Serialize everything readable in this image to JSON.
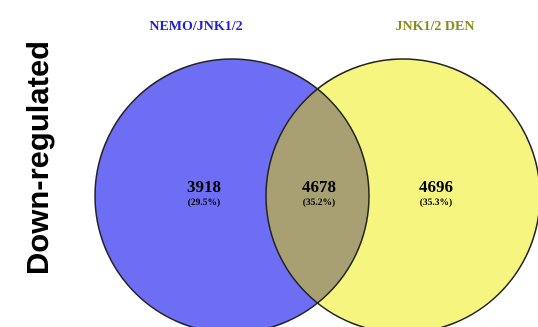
{
  "side_label": "Down-regulated",
  "colors": {
    "set_a": "#6e6ef5",
    "set_b": "#f5f580",
    "overlap": "#a8a072",
    "outline": "#222222",
    "set_a_title": "#1f1fd8",
    "set_b_title": "#8c8a1c"
  },
  "sets": [
    {
      "key": "A",
      "title": "NEMO/JNK1/2"
    },
    {
      "key": "B",
      "title": "JNK1/2 DEN"
    }
  ],
  "regions": [
    {
      "key": "only_A",
      "count": "3918",
      "percent": "(29.5%)"
    },
    {
      "key": "A_and_B",
      "count": "4678",
      "percent": "(35.2%)"
    },
    {
      "key": "only_B",
      "count": "4696",
      "percent": "(35.3%)"
    }
  ]
}
